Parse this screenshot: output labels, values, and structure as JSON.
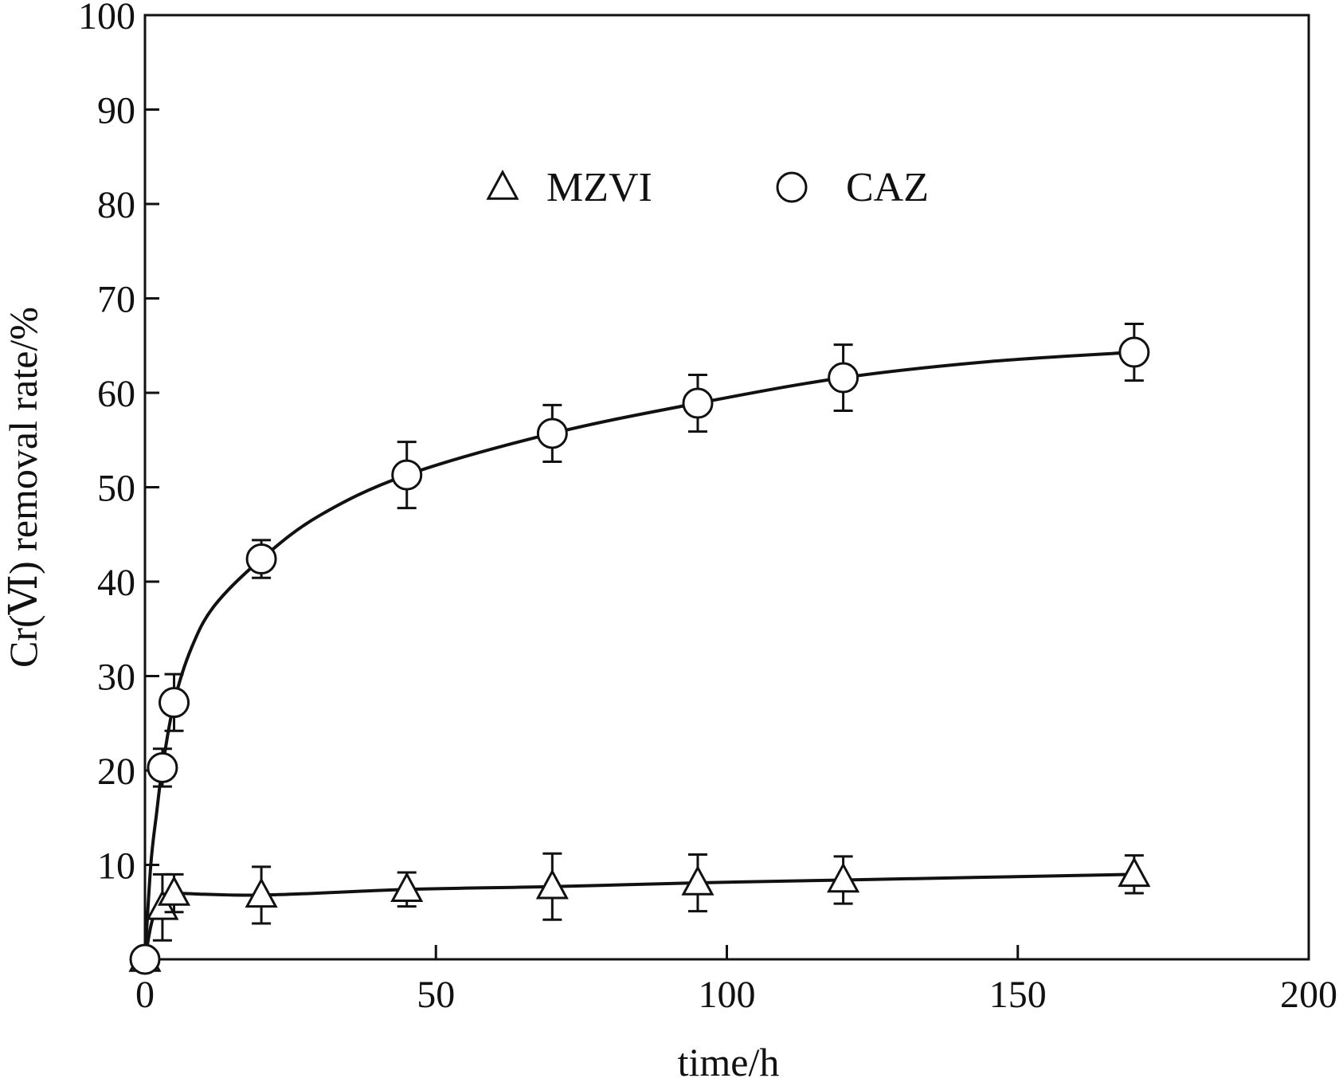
{
  "chart_data": {
    "type": "scatter",
    "title": "",
    "xlabel": "time/h",
    "ylabel": "Cr(Ⅵ) removal rate/%",
    "xlim": [
      0,
      200
    ],
    "ylim": [
      0,
      100
    ],
    "xticks": [
      0,
      50,
      100,
      150,
      200
    ],
    "xtick_labels": [
      "0",
      "50",
      "100",
      "150",
      "200"
    ],
    "yticks": [
      10,
      20,
      30,
      40,
      50,
      60,
      70,
      80,
      90,
      100
    ],
    "ytick_labels": [
      "10",
      "20",
      "30",
      "40",
      "50",
      "60",
      "70",
      "80",
      "90",
      "100"
    ],
    "grid": false,
    "legend_position": "top-center",
    "series": [
      {
        "name": "MZVI",
        "marker": "triangle",
        "x": [
          0,
          3,
          5,
          20,
          45,
          70,
          95,
          120,
          170
        ],
        "y": [
          0,
          5.5,
          7,
          6.8,
          7.4,
          7.7,
          8.1,
          8.4,
          9.0
        ],
        "error": [
          0,
          3.5,
          2.0,
          3.0,
          1.8,
          3.5,
          3.0,
          2.5,
          2.0
        ]
      },
      {
        "name": "CAZ",
        "marker": "circle",
        "x": [
          0,
          3,
          5,
          20,
          45,
          70,
          95,
          120,
          170
        ],
        "y": [
          0,
          20.3,
          27.2,
          42.4,
          51.3,
          55.7,
          58.9,
          61.6,
          64.3
        ],
        "error": [
          0,
          2.0,
          3.0,
          2.0,
          3.5,
          3.0,
          3.0,
          3.5,
          3.0
        ]
      }
    ],
    "curves": [
      {
        "name": "CAZ fit",
        "x": [
          0,
          1,
          2,
          3,
          5,
          8,
          12,
          20,
          30,
          45,
          70,
          95,
          120,
          145,
          170
        ],
        "y": [
          0,
          10,
          15.5,
          20.3,
          27.2,
          33,
          37.5,
          42.4,
          47,
          51.3,
          55.7,
          58.9,
          61.6,
          63.3,
          64.3
        ]
      },
      {
        "name": "MZVI fit",
        "x": [
          0,
          1,
          2,
          3,
          4,
          5,
          20,
          45,
          70,
          95,
          120,
          170
        ],
        "y": [
          0,
          3.5,
          5.5,
          6.5,
          6.9,
          7.0,
          6.8,
          7.4,
          7.7,
          8.1,
          8.4,
          9.0
        ]
      }
    ]
  }
}
